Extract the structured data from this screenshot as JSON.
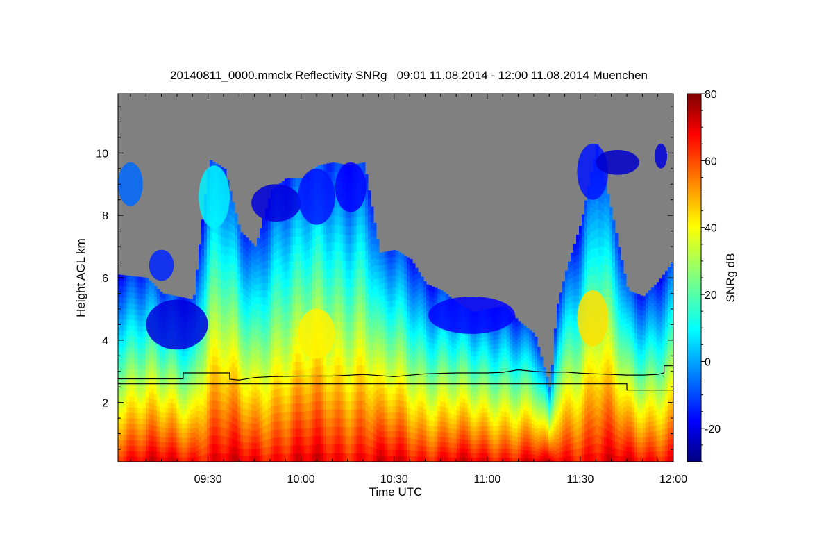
{
  "chart_data": {
    "type": "heatmap",
    "title": "20140811_0000.mmclx Reflectivity SNRg   09:01 11.08.2014 - 12:00 11.08.2014 Muenchen",
    "xlabel": "Time UTC",
    "ylabel": "Height AGL km",
    "colorbar_label": "SNRg dB",
    "xlim": [
      "09:01",
      "12:00"
    ],
    "ylim": [
      0.1,
      11.9
    ],
    "clim": [
      -30,
      80
    ],
    "grid": false,
    "background_color": "#808080",
    "colormap": "jet",
    "x_ticks": [
      "09:30",
      "10:00",
      "10:30",
      "11:00",
      "11:30",
      "12:00"
    ],
    "y_ticks": [
      "2",
      "4",
      "6",
      "8",
      "10"
    ],
    "colorbar_ticks": [
      "-20",
      "0",
      "20",
      "40",
      "60",
      "80"
    ],
    "echo_top_km": [
      {
        "time": "09:01",
        "top": 6.1
      },
      {
        "time": "09:10",
        "top": 6.0
      },
      {
        "time": "09:15",
        "top": 5.5
      },
      {
        "time": "09:20",
        "top": 5.4
      },
      {
        "time": "09:25",
        "top": 5.3
      },
      {
        "time": "09:30",
        "top": 9.8
      },
      {
        "time": "09:35",
        "top": 9.5
      },
      {
        "time": "09:40",
        "top": 7.5
      },
      {
        "time": "09:45",
        "top": 7.0
      },
      {
        "time": "09:50",
        "top": 8.8
      },
      {
        "time": "09:55",
        "top": 9.2
      },
      {
        "time": "10:00",
        "top": 9.2
      },
      {
        "time": "10:05",
        "top": 9.6
      },
      {
        "time": "10:10",
        "top": 9.7
      },
      {
        "time": "10:15",
        "top": 9.6
      },
      {
        "time": "10:20",
        "top": 9.7
      },
      {
        "time": "10:25",
        "top": 6.8
      },
      {
        "time": "10:30",
        "top": 6.9
      },
      {
        "time": "10:35",
        "top": 6.6
      },
      {
        "time": "10:40",
        "top": 5.8
      },
      {
        "time": "10:45",
        "top": 5.6
      },
      {
        "time": "10:50",
        "top": 5.2
      },
      {
        "time": "10:55",
        "top": 4.9
      },
      {
        "time": "11:00",
        "top": 5.0
      },
      {
        "time": "11:05",
        "top": 5.1
      },
      {
        "time": "11:10",
        "top": 4.6
      },
      {
        "time": "11:15",
        "top": 4.2
      },
      {
        "time": "11:20",
        "top": 2.4
      },
      {
        "time": "11:22",
        "top": 5.0
      },
      {
        "time": "11:25",
        "top": 6.2
      },
      {
        "time": "11:30",
        "top": 7.8
      },
      {
        "time": "11:35",
        "top": 10.3
      },
      {
        "time": "11:40",
        "top": 8.0
      },
      {
        "time": "11:45",
        "top": 5.6
      },
      {
        "time": "11:50",
        "top": 5.4
      },
      {
        "time": "11:55",
        "top": 5.9
      },
      {
        "time": "12:00",
        "top": 6.6
      }
    ],
    "series": [
      {
        "x": [
          "09:01",
          "09:22",
          "09:22",
          "09:37",
          "09:37",
          "09:40",
          "09:45",
          "09:50",
          "10:00",
          "10:10",
          "10:20",
          "10:30",
          "10:40",
          "10:50",
          "11:00",
          "11:05",
          "11:10",
          "11:15",
          "11:20",
          "11:25",
          "11:30",
          "11:35",
          "11:40",
          "11:45",
          "11:50",
          "11:55",
          "11:57",
          "11:57",
          "12:00"
        ],
        "values": [
          2.76,
          2.76,
          2.95,
          2.95,
          2.75,
          2.72,
          2.8,
          2.83,
          2.85,
          2.85,
          2.9,
          2.83,
          2.92,
          2.95,
          2.95,
          2.97,
          3.05,
          3.0,
          2.97,
          2.98,
          2.94,
          2.92,
          2.9,
          2.88,
          2.88,
          2.9,
          2.95,
          3.18,
          3.18
        ]
      },
      {
        "x": [
          "09:01",
          "11:45",
          "11:45",
          "12:00"
        ],
        "values": [
          2.6,
          2.6,
          2.4,
          2.4
        ]
      }
    ],
    "blobs": [
      {
        "time": "09:05",
        "h": 9.0,
        "dt": 4,
        "dh": 0.7,
        "v": -5
      },
      {
        "time": "09:15",
        "h": 6.4,
        "dt": 4,
        "dh": 0.5,
        "v": -12
      },
      {
        "time": "09:20",
        "h": 4.5,
        "dt": 10,
        "dh": 0.8,
        "v": -20
      },
      {
        "time": "09:32",
        "h": 8.6,
        "dt": 5,
        "dh": 1.0,
        "v": 10
      },
      {
        "time": "09:52",
        "h": 8.4,
        "dt": 8,
        "dh": 0.6,
        "v": -20
      },
      {
        "time": "10:05",
        "h": 8.6,
        "dt": 6,
        "dh": 0.9,
        "v": -14
      },
      {
        "time": "10:16",
        "h": 8.9,
        "dt": 5,
        "dh": 0.8,
        "v": -16
      },
      {
        "time": "10:55",
        "h": 4.8,
        "dt": 14,
        "dh": 0.6,
        "v": -16
      },
      {
        "time": "11:34",
        "h": 9.4,
        "dt": 5,
        "dh": 0.9,
        "v": -14
      },
      {
        "time": "11:42",
        "h": 9.7,
        "dt": 7,
        "dh": 0.4,
        "v": -22
      },
      {
        "time": "11:56",
        "h": 9.9,
        "dt": 2,
        "dh": 0.4,
        "v": -20
      },
      {
        "time": "10:05",
        "h": 4.2,
        "dt": 6,
        "dh": 0.8,
        "v": 40
      },
      {
        "time": "11:34",
        "h": 4.7,
        "dt": 5,
        "dh": 0.9,
        "v": 42
      }
    ]
  }
}
